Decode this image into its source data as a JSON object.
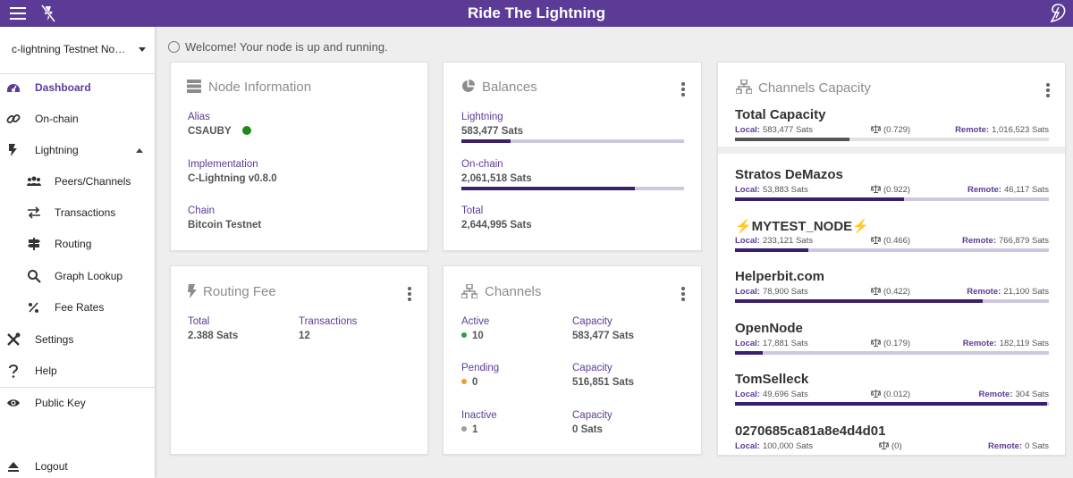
{
  "app": {
    "title": "Ride The Lightning"
  },
  "sidebar": {
    "node_select": "c-lightning Testnet Node …",
    "items": [
      {
        "label": "Dashboard",
        "icon": "dashboard-icon"
      },
      {
        "label": "On-chain",
        "icon": "link-icon"
      },
      {
        "label": "Lightning",
        "icon": "bolt-icon"
      },
      {
        "label": "Peers/Channels",
        "icon": "people-icon"
      },
      {
        "label": "Transactions",
        "icon": "swap-icon"
      },
      {
        "label": "Routing",
        "icon": "signpost-icon"
      },
      {
        "label": "Graph Lookup",
        "icon": "search-icon"
      },
      {
        "label": "Fee Rates",
        "icon": "percent-icon"
      },
      {
        "label": "Settings",
        "icon": "tools-icon"
      },
      {
        "label": "Help",
        "icon": "help-icon"
      },
      {
        "label": "Public Key",
        "icon": "eye-icon"
      },
      {
        "label": "Logout",
        "icon": "eject-icon"
      }
    ]
  },
  "welcome": "Welcome! Your node is up and running.",
  "node_info": {
    "title": "Node Information",
    "alias_label": "Alias",
    "alias": "CSAUBY",
    "impl_label": "Implementation",
    "impl": "C-Lightning v0.8.0",
    "chain_label": "Chain",
    "chain": "Bitcoin Testnet",
    "status_color": "#1e8a1e"
  },
  "balances": {
    "title": "Balances",
    "lightning_label": "Lightning",
    "lightning": "583,477 Sats",
    "lightning_fraction": 0.221,
    "onchain_label": "On-chain",
    "onchain": "2,061,518 Sats",
    "onchain_fraction": 0.779,
    "total_label": "Total",
    "total": "2,644,995 Sats"
  },
  "routing_fee": {
    "title": "Routing Fee",
    "total_label": "Total",
    "total": "2.388 Sats",
    "tx_label": "Transactions",
    "tx": "12"
  },
  "channels": {
    "title": "Channels",
    "active_label": "Active",
    "active": "10",
    "active_color": "#2e9e3e",
    "active_cap_label": "Capacity",
    "active_cap": "583,477 Sats",
    "pending_label": "Pending",
    "pending": "0",
    "pending_color": "#f0a020",
    "pending_cap_label": "Capacity",
    "pending_cap": "516,851 Sats",
    "inactive_label": "Inactive",
    "inactive": "1",
    "inactive_color": "#9e9e9e",
    "inactive_cap_label": "Capacity",
    "inactive_cap": "0 Sats"
  },
  "capacity": {
    "title": "Channels Capacity",
    "local_label": "Local:",
    "remote_label": "Remote:",
    "rows": [
      {
        "name": "Total Capacity",
        "local": "583,477 Sats",
        "ratio": "(0.729)",
        "remote": "1,016,523 Sats",
        "local_fraction": 0.365
      },
      {
        "name": "Stratos DeMazos",
        "local": "53,883 Sats",
        "ratio": "(0.922)",
        "remote": "46,117 Sats",
        "local_fraction": 0.539
      },
      {
        "name": "⚡MYTEST_NODE⚡",
        "local": "233,121 Sats",
        "ratio": "(0.466)",
        "remote": "766,879 Sats",
        "local_fraction": 0.233
      },
      {
        "name": "Helperbit.com",
        "local": "78,900 Sats",
        "ratio": "(0.422)",
        "remote": "21,100 Sats",
        "local_fraction": 0.789
      },
      {
        "name": "OpenNode",
        "local": "17,881 Sats",
        "ratio": "(0.179)",
        "remote": "182,119 Sats",
        "local_fraction": 0.089
      },
      {
        "name": "TomSelleck",
        "local": "49,696 Sats",
        "ratio": "(0.012)",
        "remote": "304 Sats",
        "local_fraction": 0.994
      },
      {
        "name": "0270685ca81a8e4d4d01",
        "local": "100,000 Sats",
        "ratio": "(0)",
        "remote": "0 Sats",
        "local_fraction": 1.0
      }
    ]
  },
  "colors": {
    "primary": "#5c3b96",
    "bar_fill": "#3a1f6e",
    "bar_track": "#cfc6e0"
  }
}
